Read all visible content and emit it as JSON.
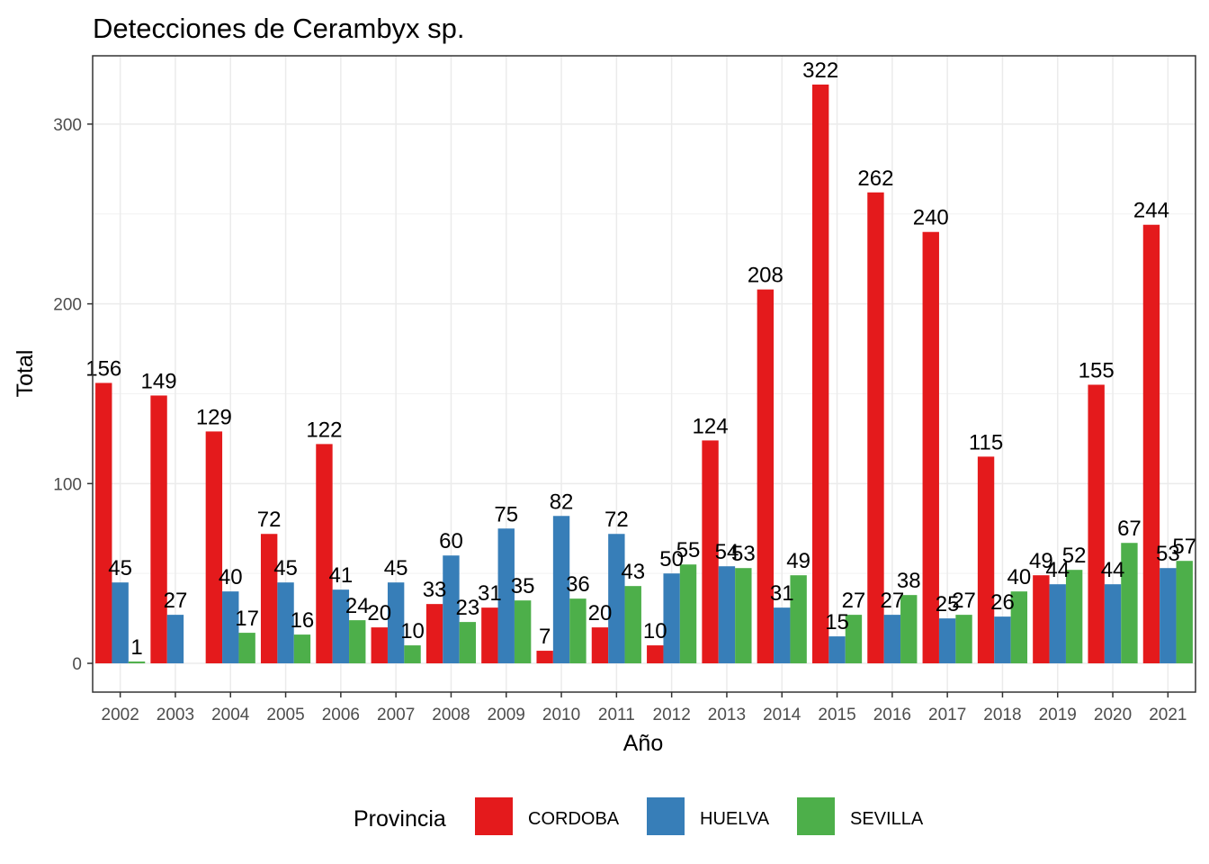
{
  "chart_data": {
    "type": "bar",
    "title": "Detecciones de Cerambyx sp.",
    "xlabel": "Año",
    "ylabel": "Total",
    "ylim": [
      -16,
      338
    ],
    "yticks": [
      0,
      100,
      200,
      300
    ],
    "grid": true,
    "legend_placement": "bottom",
    "legend_title": "Provincia",
    "categories": [
      "2002",
      "2003",
      "2004",
      "2005",
      "2006",
      "2007",
      "2008",
      "2009",
      "2010",
      "2011",
      "2012",
      "2013",
      "2014",
      "2015",
      "2016",
      "2017",
      "2018",
      "2019",
      "2020",
      "2021"
    ],
    "series": [
      {
        "name": "CORDOBA",
        "color": "#e41a1c",
        "values": [
          156,
          149,
          129,
          72,
          122,
          20,
          33,
          31,
          7,
          20,
          10,
          124,
          208,
          322,
          262,
          240,
          115,
          49,
          155,
          244
        ]
      },
      {
        "name": "HUELVA",
        "color": "#377eb8",
        "values": [
          45,
          27,
          40,
          45,
          41,
          45,
          60,
          75,
          82,
          72,
          50,
          54,
          31,
          15,
          27,
          25,
          26,
          44,
          44,
          53
        ]
      },
      {
        "name": "SEVILLA",
        "color": "#4daf4a",
        "values": [
          1,
          null,
          17,
          16,
          24,
          10,
          23,
          35,
          36,
          43,
          55,
          53,
          49,
          27,
          38,
          27,
          40,
          52,
          67,
          57
        ]
      }
    ]
  }
}
